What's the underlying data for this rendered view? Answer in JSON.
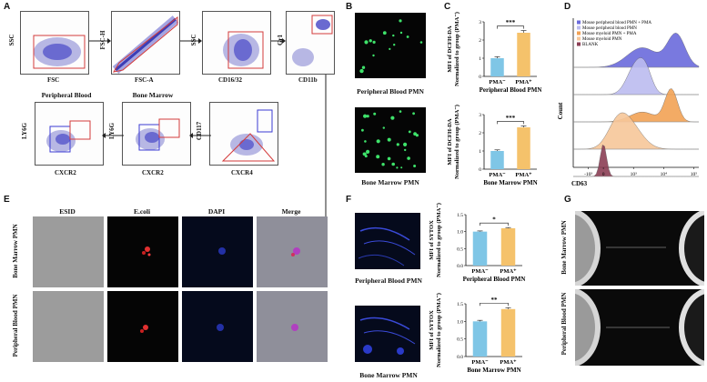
{
  "panels": {
    "A": {
      "letter": "A",
      "plots_row1": [
        {
          "x": "FSC",
          "y": "SSC"
        },
        {
          "x": "FSC-A",
          "y": "FSC-H"
        },
        {
          "x": "CD16/32",
          "y": "SSC"
        },
        {
          "x": "CD11b",
          "y": "Gr1"
        }
      ],
      "plots_row2": [
        {
          "x": "CXCR2",
          "y": "LY6G",
          "title": "Peripheral Blood"
        },
        {
          "x": "CXCR2",
          "y": "LY6G",
          "title": "Bone Marrow"
        },
        {
          "x": "CXCR4",
          "y": "CD117"
        }
      ]
    },
    "B": {
      "letter": "B",
      "captions": [
        "Peripheral Blood PMN",
        "Bone Marrow PMN"
      ]
    },
    "C": {
      "letter": "C",
      "y_title_line1": "MFI of DCFH-DA",
      "y_title_line2": "Normalized to group (PMA⁻)",
      "significance": "***",
      "categories": [
        "PMA⁻",
        "PMA⁺"
      ],
      "captions": [
        "Peripheral Blood PMN",
        "Bone Marrow PMN"
      ]
    },
    "D": {
      "letter": "D",
      "legend": [
        {
          "label": "Mouse peripheral blood PMN + PMA",
          "color": "#6b6bdc"
        },
        {
          "label": "Mouse peripheral blood PMN",
          "color": "#bcbcf0"
        },
        {
          "label": "Mouse myeloid PMN + PMA",
          "color": "#f2a255"
        },
        {
          "label": "Mouse myeloid PMN",
          "color": "#f7c79a"
        },
        {
          "label": "BLANK",
          "color": "#8b3f55"
        }
      ],
      "y_title": "Count",
      "x_title": "CD63",
      "ticks": [
        "-10³",
        "0",
        "10³",
        "10⁴",
        "10⁵"
      ]
    },
    "E": {
      "letter": "E",
      "columns": [
        "ESID",
        "E.coli",
        "DAPI",
        "Merge"
      ],
      "rows": [
        "Bone Marrow PMN",
        "Peripheral Blood PMN"
      ]
    },
    "F": {
      "letter": "F",
      "y_title_line1": "MFI of SYTOX",
      "y_title_line2": "Normalized to group (PMA⁻)",
      "charts": [
        {
          "significance": "*",
          "caption": "Peripheral Blood PMN"
        },
        {
          "significance": "**",
          "caption": "Bone Marrow PMN"
        }
      ],
      "categories": [
        "PMA⁻",
        "PMA⁺"
      ],
      "image_captions": [
        "Peripheral Blood PMN",
        "Bone Marrow PMN"
      ]
    },
    "G": {
      "letter": "G",
      "rows": [
        "Bone Marrow PMN",
        "Peripheral Blood PMN"
      ]
    }
  },
  "chart_data": [
    {
      "type": "bar",
      "panel": "C-top",
      "categories": [
        "PMA⁻",
        "PMA⁺"
      ],
      "values": [
        1.0,
        2.4
      ],
      "errors": [
        0.08,
        0.12
      ],
      "ylim": [
        0,
        3
      ],
      "yticks": [
        "0",
        "1",
        "2",
        "3"
      ],
      "colors": [
        "#7fc6e6",
        "#f5c26b"
      ],
      "xlabel": "Peripheral Blood PMN",
      "significance": "***"
    },
    {
      "type": "bar",
      "panel": "C-bottom",
      "categories": [
        "PMA⁻",
        "PMA⁺"
      ],
      "values": [
        1.0,
        2.3
      ],
      "errors": [
        0.06,
        0.08
      ],
      "ylim": [
        0,
        3
      ],
      "yticks": [
        "0",
        "1",
        "2",
        "3"
      ],
      "colors": [
        "#7fc6e6",
        "#f5c26b"
      ],
      "xlabel": "Bone Marrow PMN",
      "significance": "***"
    },
    {
      "type": "bar",
      "panel": "F-top",
      "categories": [
        "PMA⁻",
        "PMA⁺"
      ],
      "values": [
        1.0,
        1.1
      ],
      "errors": [
        0.02,
        0.02
      ],
      "ylim": [
        0,
        1.5
      ],
      "yticks": [
        "0.0",
        "0.5",
        "1.0",
        "1.5"
      ],
      "colors": [
        "#7fc6e6",
        "#f5c26b"
      ],
      "xlabel": "Peripheral Blood PMN",
      "significance": "*"
    },
    {
      "type": "bar",
      "panel": "F-bottom",
      "categories": [
        "PMA⁻",
        "PMA⁺"
      ],
      "values": [
        1.0,
        1.35
      ],
      "errors": [
        0.03,
        0.04
      ],
      "ylim": [
        0,
        1.5
      ],
      "yticks": [
        "0.0",
        "0.5",
        "1.0",
        "1.5"
      ],
      "colors": [
        "#7fc6e6",
        "#f5c26b"
      ],
      "xlabel": "Bone Marrow PMN",
      "significance": "**"
    }
  ]
}
